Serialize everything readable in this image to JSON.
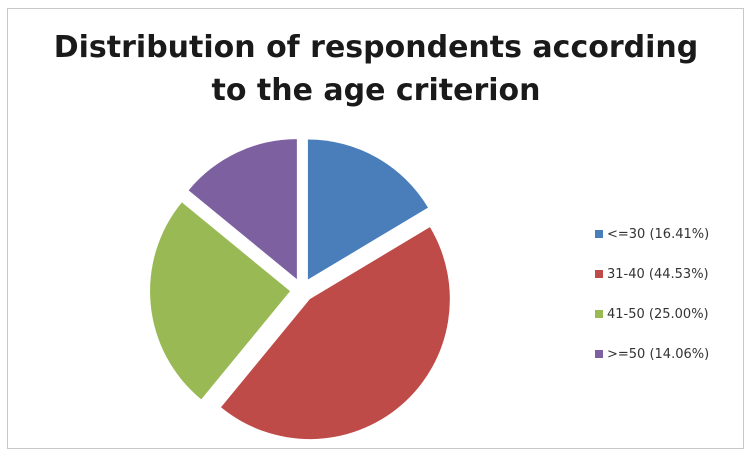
{
  "chart_data": {
    "type": "pie",
    "title_lines": [
      "Distribution of respondents according",
      "to the age criterion"
    ],
    "categories": [
      "<=30",
      "31-40",
      "41-50",
      ">=50"
    ],
    "values": [
      16.41,
      44.53,
      25.0,
      14.06
    ],
    "exploded": true,
    "legend_position": "right",
    "legend": [
      {
        "label": "<=30 (16.41%)",
        "color": "#4a7ebb"
      },
      {
        "label": "31-40 (44.53%)",
        "color": "#be4b48"
      },
      {
        "label": "41-50 (25.00%)",
        "color": "#98b954"
      },
      {
        "label": ">=50 (14.06%)",
        "color": "#7d60a0"
      }
    ]
  }
}
